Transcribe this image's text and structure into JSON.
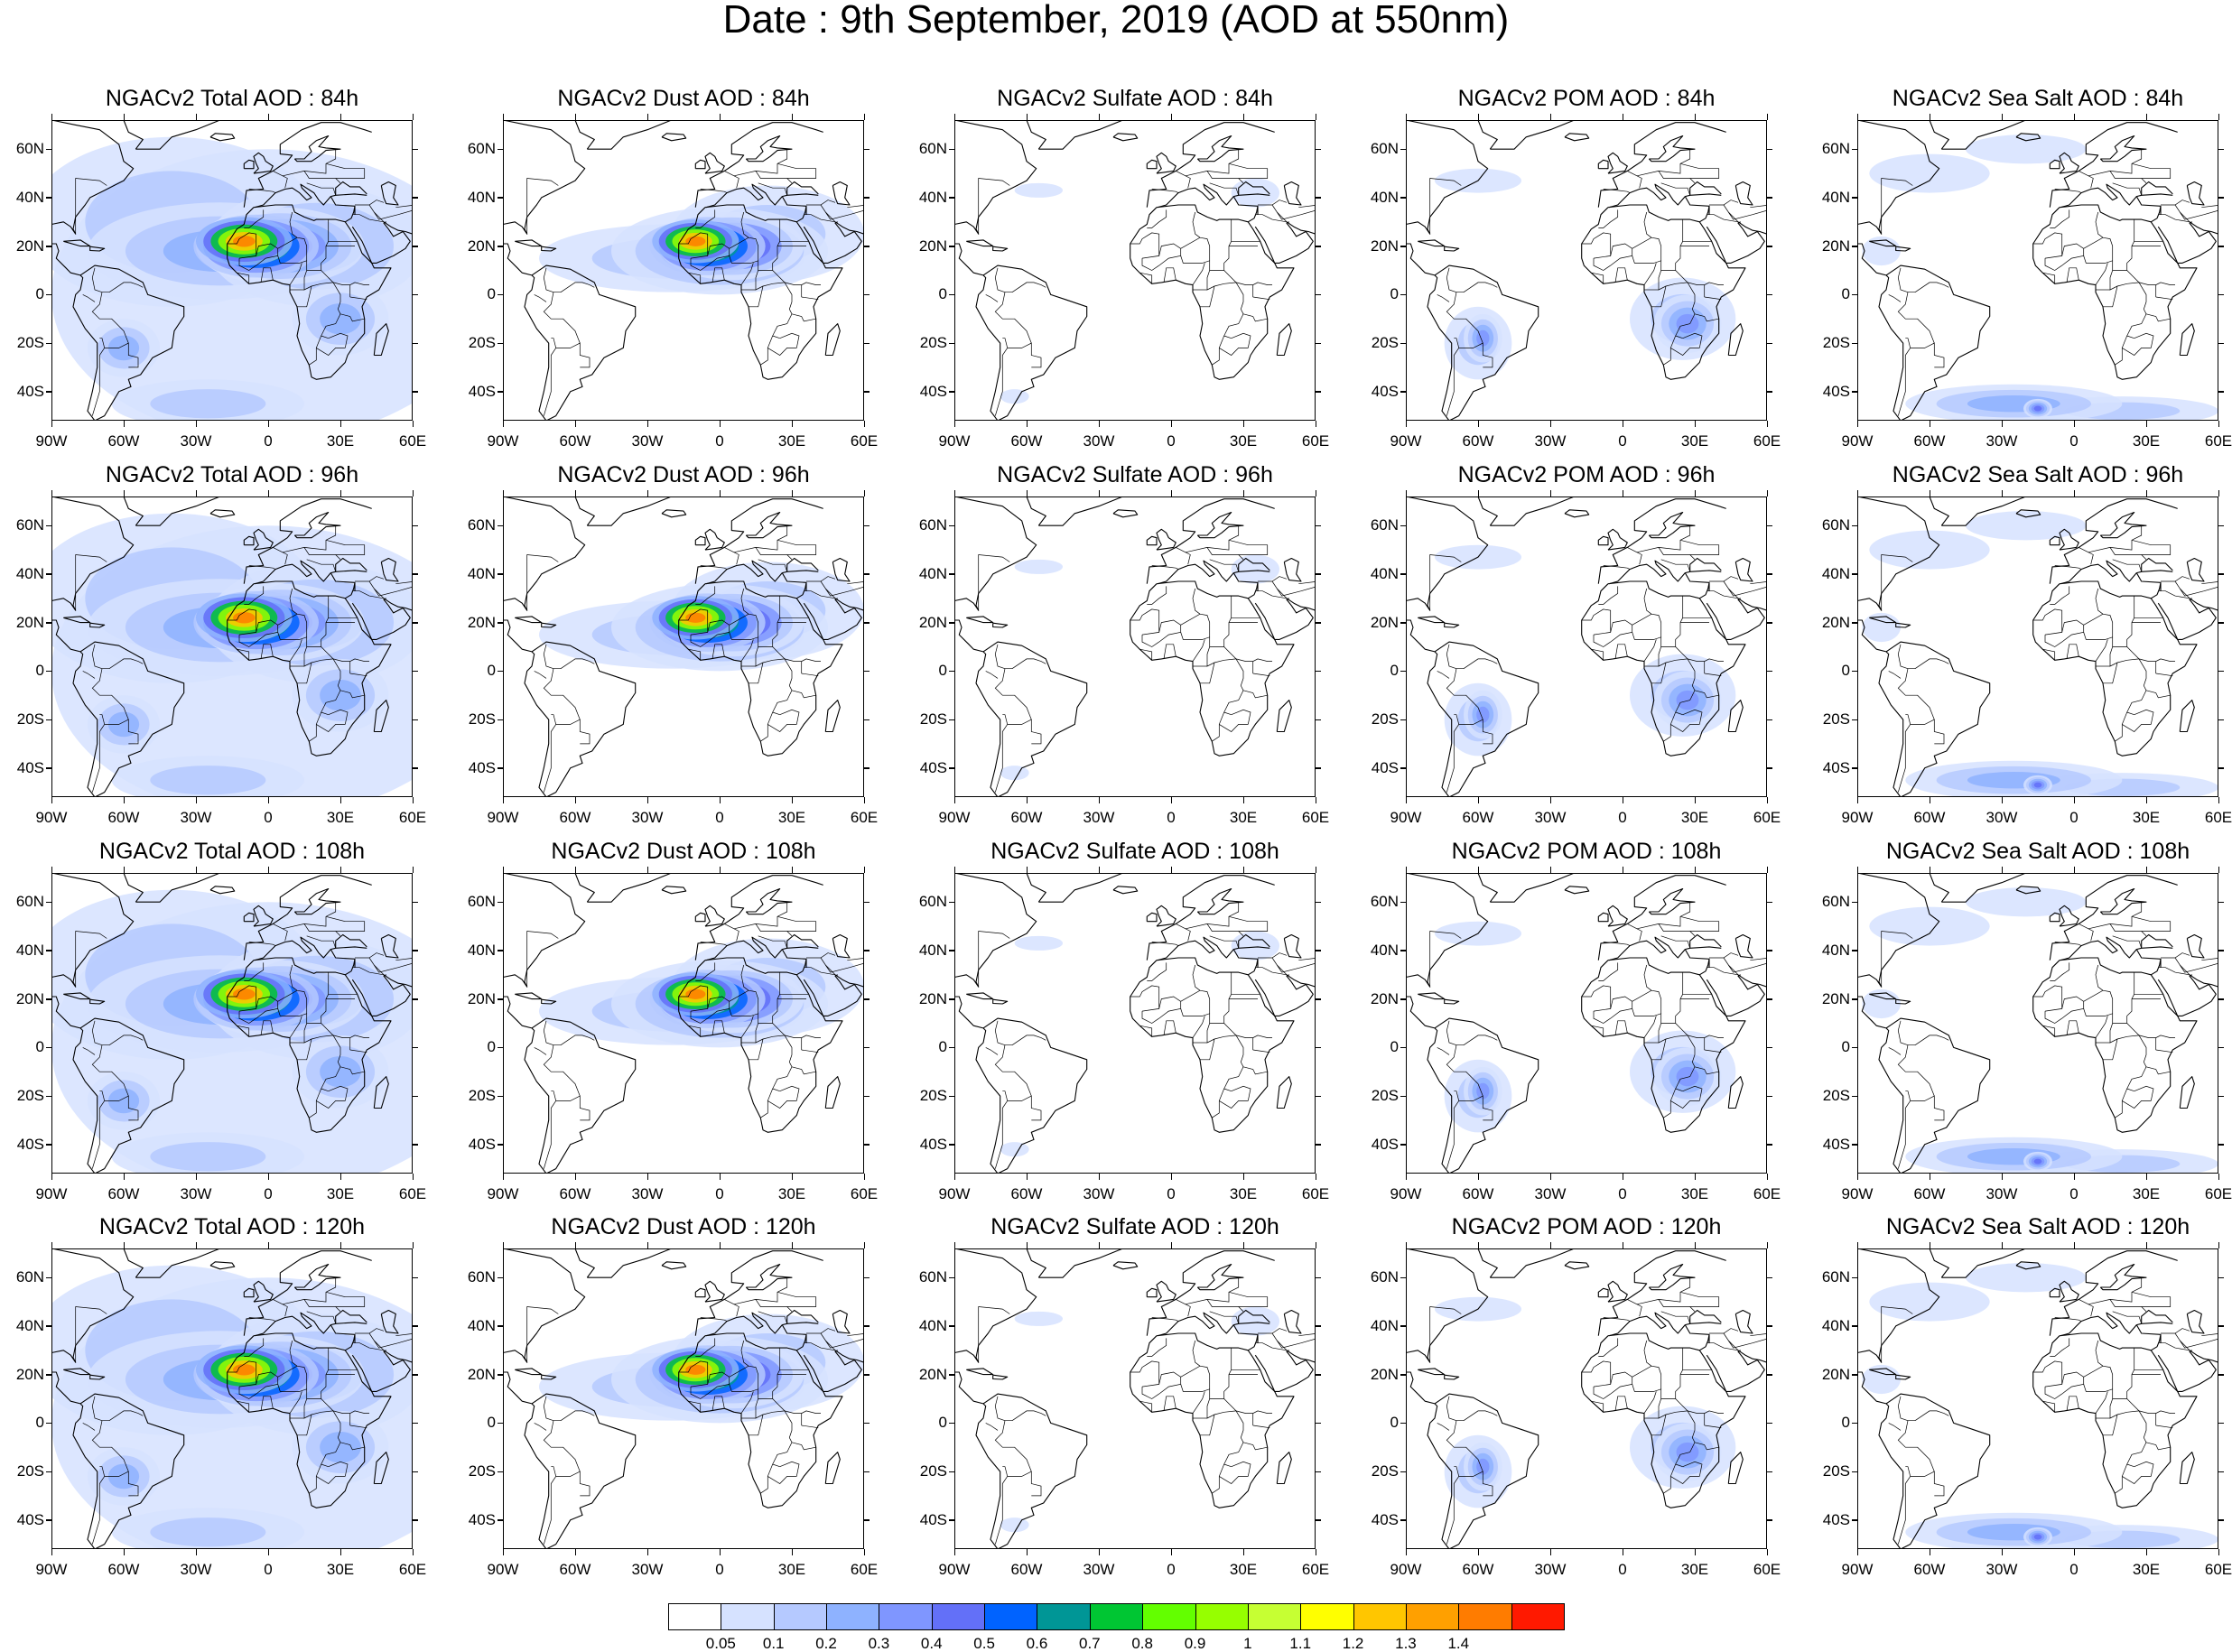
{
  "figure": {
    "title": "Date : 9th September, 2019 (AOD at 550nm)"
  },
  "axes": {
    "lat_ticks": [
      "60N",
      "40N",
      "20N",
      "0",
      "20S",
      "40S"
    ],
    "lat_values": [
      60,
      40,
      20,
      0,
      -20,
      -40
    ],
    "lon_ticks": [
      "90W",
      "60W",
      "30W",
      "0",
      "30E",
      "60E"
    ],
    "lon_values": [
      -90,
      -60,
      -30,
      0,
      30,
      60
    ],
    "lat_range": [
      -52,
      72
    ],
    "lon_range": [
      -90,
      60
    ]
  },
  "panels": [
    {
      "title": "NGACv2 Total AOD : 84h",
      "species": "total",
      "lead": "84h"
    },
    {
      "title": "NGACv2 Dust AOD : 84h",
      "species": "dust",
      "lead": "84h"
    },
    {
      "title": "NGACv2 Sulfate AOD : 84h",
      "species": "sulfate",
      "lead": "84h"
    },
    {
      "title": "NGACv2 POM AOD : 84h",
      "species": "pom",
      "lead": "84h"
    },
    {
      "title": "NGACv2 Sea Salt AOD : 84h",
      "species": "seasalt",
      "lead": "84h"
    },
    {
      "title": "NGACv2 Total AOD : 96h",
      "species": "total",
      "lead": "96h"
    },
    {
      "title": "NGACv2 Dust AOD : 96h",
      "species": "dust",
      "lead": "96h"
    },
    {
      "title": "NGACv2 Sulfate AOD : 96h",
      "species": "sulfate",
      "lead": "96h"
    },
    {
      "title": "NGACv2 POM AOD : 96h",
      "species": "pom",
      "lead": "96h"
    },
    {
      "title": "NGACv2 Sea Salt AOD : 96h",
      "species": "seasalt",
      "lead": "96h"
    },
    {
      "title": "NGACv2 Total AOD : 108h",
      "species": "total",
      "lead": "108h"
    },
    {
      "title": "NGACv2 Dust AOD : 108h",
      "species": "dust",
      "lead": "108h"
    },
    {
      "title": "NGACv2 Sulfate AOD : 108h",
      "species": "sulfate",
      "lead": "108h"
    },
    {
      "title": "NGACv2 POM AOD : 108h",
      "species": "pom",
      "lead": "108h"
    },
    {
      "title": "NGACv2 Sea Salt AOD : 108h",
      "species": "seasalt",
      "lead": "108h"
    },
    {
      "title": "NGACv2 Total AOD : 120h",
      "species": "total",
      "lead": "120h"
    },
    {
      "title": "NGACv2 Dust AOD : 120h",
      "species": "dust",
      "lead": "120h"
    },
    {
      "title": "NGACv2 Sulfate AOD : 120h",
      "species": "sulfate",
      "lead": "120h"
    },
    {
      "title": "NGACv2 POM AOD : 120h",
      "species": "pom",
      "lead": "120h"
    },
    {
      "title": "NGACv2 Sea Salt  AOD : 120h",
      "species": "seasalt",
      "lead": "120h"
    }
  ],
  "colorbar": {
    "labels": [
      "0.05",
      "0.1",
      "0.2",
      "0.3",
      "0.4",
      "0.5",
      "0.6",
      "0.7",
      "0.8",
      "0.9",
      "1",
      "1.1",
      "1.2",
      "1.3",
      "1.4"
    ],
    "colors": [
      "#ffffff",
      "#d6e2ff",
      "#b5c9ff",
      "#8eb2ff",
      "#7f96ff",
      "#6370f8",
      "#0063ff",
      "#009696",
      "#00c633",
      "#63ff00",
      "#96ff00",
      "#c6ff33",
      "#ffff00",
      "#ffc600",
      "#ffa000",
      "#ff7c00",
      "#ff1900"
    ]
  },
  "colors": {
    "land_outline": "#000000",
    "background": "#ffffff"
  }
}
